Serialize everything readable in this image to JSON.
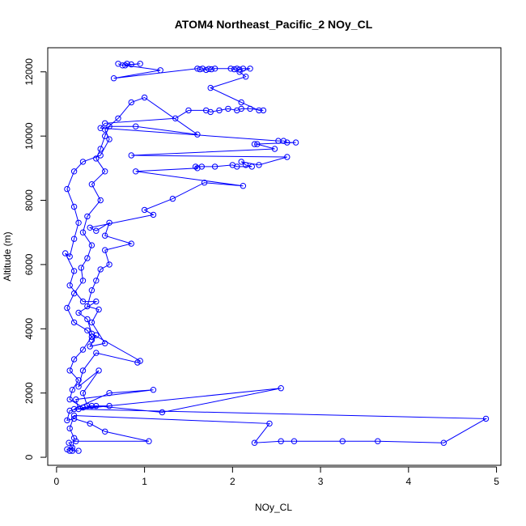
{
  "chart_data": {
    "type": "scatter",
    "title": "ATOM4 Northeast_Pacific_2 NOy_CL",
    "xlabel": "NOy_CL",
    "ylabel": "Altitude (m)",
    "xlim": [
      -0.1,
      5.05
    ],
    "ylim": [
      -250,
      12750
    ],
    "xticks": [
      0,
      1,
      2,
      3,
      4,
      5
    ],
    "yticks": [
      0,
      2000,
      4000,
      6000,
      8000,
      10000,
      12000
    ],
    "grid": false,
    "legend": "none",
    "color": "#0000ff",
    "series": [
      {
        "marker": "open-circle",
        "line": true,
        "points": [
          [
            0.15,
            200
          ],
          [
            0.12,
            250
          ],
          [
            0.18,
            300
          ],
          [
            0.14,
            450
          ],
          [
            0.22,
            500
          ],
          [
            1.05,
            500
          ],
          [
            0.55,
            800
          ],
          [
            0.38,
            1050
          ],
          [
            0.2,
            1200
          ],
          [
            0.12,
            1150
          ],
          [
            0.15,
            1450
          ],
          [
            0.4,
            1600
          ],
          [
            0.6,
            1600
          ],
          [
            0.3,
            1550
          ],
          [
            0.15,
            1800
          ],
          [
            0.18,
            2100
          ],
          [
            0.25,
            2400
          ],
          [
            0.15,
            2700
          ],
          [
            0.2,
            3050
          ],
          [
            0.3,
            3350
          ],
          [
            0.4,
            3750
          ],
          [
            0.35,
            3950
          ],
          [
            0.2,
            4200
          ],
          [
            0.12,
            4650
          ],
          [
            0.2,
            5100
          ],
          [
            0.3,
            5500
          ],
          [
            0.28,
            5900
          ],
          [
            0.35,
            6200
          ],
          [
            0.4,
            6600
          ],
          [
            0.3,
            7000
          ],
          [
            0.35,
            7500
          ],
          [
            0.5,
            8000
          ],
          [
            0.4,
            8500
          ],
          [
            0.55,
            8900
          ],
          [
            0.45,
            9300
          ],
          [
            0.5,
            9600
          ],
          [
            0.55,
            10000
          ],
          [
            0.6,
            10300
          ],
          [
            0.9,
            10300
          ],
          [
            1.6,
            10050
          ],
          [
            1.0,
            11200
          ],
          [
            0.85,
            11050
          ],
          [
            0.7,
            10550
          ],
          [
            0.55,
            10200
          ],
          [
            0.6,
            9900
          ],
          [
            0.5,
            9400
          ],
          [
            0.3,
            9200
          ],
          [
            0.2,
            8900
          ],
          [
            0.12,
            8350
          ],
          [
            0.2,
            7800
          ],
          [
            0.25,
            7300
          ],
          [
            0.2,
            6800
          ],
          [
            0.15,
            6250
          ],
          [
            0.1,
            6350
          ],
          [
            0.2,
            5800
          ],
          [
            0.15,
            5350
          ],
          [
            0.3,
            4850
          ],
          [
            0.45,
            4850
          ],
          [
            0.25,
            4500
          ],
          [
            0.35,
            4300
          ],
          [
            0.4,
            3850
          ],
          [
            0.95,
            3000
          ],
          [
            0.92,
            2950
          ],
          [
            0.45,
            3250
          ],
          [
            0.3,
            2700
          ],
          [
            0.25,
            2200
          ],
          [
            0.48,
            2700
          ],
          [
            0.3,
            2000
          ],
          [
            0.35,
            1600
          ],
          [
            0.45,
            1600
          ],
          [
            1.2,
            1400
          ],
          [
            2.55,
            2150
          ],
          [
            0.25,
            1500
          ],
          [
            0.22,
            1800
          ],
          [
            1.1,
            2100
          ],
          [
            0.6,
            2000
          ],
          [
            0.2,
            1500
          ],
          [
            4.88,
            1200
          ],
          [
            4.4,
            450
          ],
          [
            3.65,
            500
          ],
          [
            3.25,
            500
          ],
          [
            2.7,
            500
          ],
          [
            2.55,
            500
          ],
          [
            2.25,
            450
          ],
          [
            2.42,
            1050
          ],
          [
            0.2,
            1300
          ],
          [
            0.15,
            900
          ],
          [
            0.2,
            600
          ],
          [
            0.18,
            200
          ],
          [
            0.25,
            200
          ]
        ]
      },
      {
        "marker": "open-circle",
        "line": true,
        "points": [
          [
            0.7,
            12250
          ],
          [
            0.75,
            12200
          ],
          [
            0.8,
            12250
          ],
          [
            0.85,
            12230
          ],
          [
            0.95,
            12250
          ],
          [
            0.78,
            12200
          ],
          [
            1.18,
            12050
          ],
          [
            0.65,
            11800
          ],
          [
            1.6,
            12100
          ],
          [
            1.63,
            12080
          ],
          [
            1.66,
            12100
          ],
          [
            1.7,
            12060
          ],
          [
            1.73,
            12090
          ],
          [
            1.76,
            12080
          ],
          [
            1.8,
            12100
          ],
          [
            1.98,
            12100
          ],
          [
            2.02,
            12080
          ],
          [
            2.05,
            12100
          ],
          [
            2.08,
            12070
          ],
          [
            2.12,
            12100
          ],
          [
            2.2,
            12100
          ],
          [
            2.08,
            12000
          ],
          [
            2.15,
            11850
          ],
          [
            1.75,
            11500
          ],
          [
            2.1,
            11050
          ],
          [
            2.3,
            10800
          ],
          [
            2.35,
            10800
          ],
          [
            2.2,
            10850
          ],
          [
            2.1,
            10850
          ],
          [
            2.05,
            10800
          ],
          [
            1.95,
            10850
          ],
          [
            1.85,
            10800
          ],
          [
            1.75,
            10750
          ],
          [
            1.7,
            10800
          ],
          [
            1.5,
            10800
          ],
          [
            1.35,
            10550
          ],
          [
            0.55,
            10400
          ],
          [
            0.5,
            10250
          ],
          [
            2.52,
            9850
          ],
          [
            2.58,
            9850
          ],
          [
            2.62,
            9800
          ],
          [
            2.72,
            9800
          ],
          [
            2.25,
            9750
          ],
          [
            2.28,
            9750
          ],
          [
            2.48,
            9600
          ],
          [
            0.85,
            9400
          ],
          [
            2.62,
            9350
          ],
          [
            2.3,
            9100
          ],
          [
            2.1,
            9200
          ],
          [
            2.15,
            9100
          ],
          [
            2.22,
            9050
          ],
          [
            2.05,
            9050
          ],
          [
            2.0,
            9100
          ],
          [
            1.8,
            9050
          ],
          [
            1.65,
            9050
          ],
          [
            1.58,
            9050
          ],
          [
            1.6,
            9000
          ],
          [
            0.9,
            8900
          ],
          [
            2.12,
            8450
          ],
          [
            1.68,
            8550
          ],
          [
            1.32,
            8050
          ],
          [
            1.0,
            7700
          ],
          [
            1.1,
            7550
          ],
          [
            0.38,
            7150
          ],
          [
            0.45,
            7050
          ],
          [
            0.6,
            7300
          ],
          [
            0.55,
            6900
          ],
          [
            0.85,
            6650
          ],
          [
            0.55,
            6450
          ],
          [
            0.6,
            6000
          ],
          [
            0.5,
            5850
          ],
          [
            0.45,
            5500
          ],
          [
            0.4,
            5200
          ],
          [
            0.35,
            4700
          ],
          [
            0.48,
            4600
          ],
          [
            0.4,
            4200
          ],
          [
            0.55,
            3550
          ],
          [
            0.38,
            3450
          ],
          [
            0.45,
            3800
          ],
          [
            0.4,
            3650
          ]
        ]
      }
    ]
  }
}
